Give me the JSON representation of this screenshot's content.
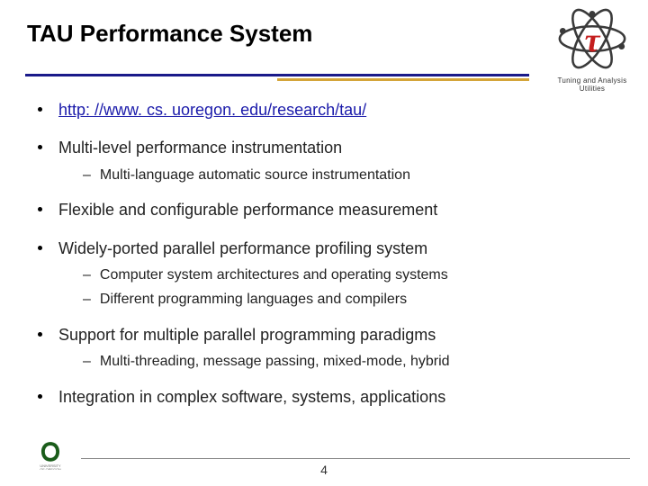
{
  "title": "TAU Performance System",
  "logo": {
    "caption": "Tuning and Analysis Utilities",
    "tau_red": "#c41e1e",
    "tau_dark": "#3a3a3a"
  },
  "divider": {
    "blue_color": "#1a1a8a",
    "gold_color": "#d4a53a"
  },
  "bullets": [
    {
      "text": "http: //www. cs. uoregon. edu/research/tau/",
      "is_link": true,
      "subs": []
    },
    {
      "text": "Multi-level performance instrumentation",
      "is_link": false,
      "subs": [
        "Multi-language automatic source instrumentation"
      ]
    },
    {
      "text": "Flexible and configurable performance measurement",
      "is_link": false,
      "subs": []
    },
    {
      "text": "Widely-ported parallel performance profiling system",
      "is_link": false,
      "subs": [
        "Computer system architectures and operating systems",
        "Different programming languages and compilers"
      ]
    },
    {
      "text": "Support for multiple parallel programming paradigms",
      "is_link": false,
      "subs": [
        "Multi-threading, message passing, mixed-mode, hybrid"
      ]
    },
    {
      "text": "Integration in complex software, systems, applications",
      "is_link": false,
      "subs": []
    }
  ],
  "page_number": "4",
  "uo": {
    "o_color": "#1a5c1a",
    "text_color": "#666"
  }
}
